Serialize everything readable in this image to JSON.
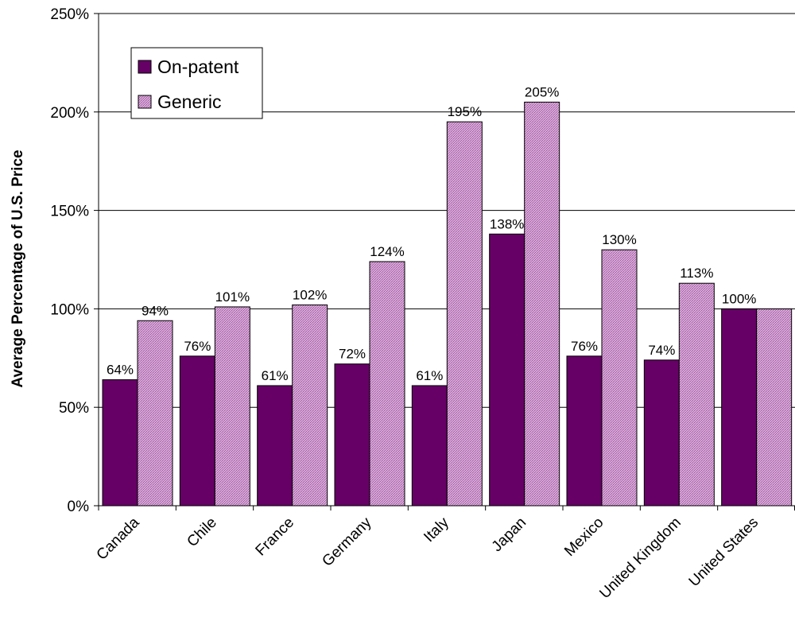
{
  "chart_data": {
    "type": "bar",
    "title": "",
    "xlabel": "",
    "ylabel": "Average Percentage of U.S. Price",
    "ylim": [
      0,
      250
    ],
    "y_tick_values": [
      0,
      50,
      100,
      150,
      200,
      250
    ],
    "y_tick_labels": [
      "0%",
      "50%",
      "100%",
      "150%",
      "200%",
      "250%"
    ],
    "grid": "horizontal",
    "legend_position": "top-left",
    "categories": [
      "Canada",
      "Chile",
      "France",
      "Germany",
      "Italy",
      "Japan",
      "Mexico",
      "United Kingdom",
      "United States"
    ],
    "series": [
      {
        "name": "On-patent",
        "color": "#660066",
        "values": [
          64,
          76,
          61,
          72,
          61,
          138,
          76,
          74,
          100
        ],
        "labels": [
          "64%",
          "76%",
          "61%",
          "72%",
          "61%",
          "138%",
          "76%",
          "74%",
          "100%"
        ]
      },
      {
        "name": "Generic",
        "color": "#c890c8",
        "pattern": "crosshatch",
        "values": [
          94,
          101,
          102,
          124,
          195,
          205,
          130,
          113,
          100
        ],
        "labels": [
          "94%",
          "101%",
          "102%",
          "124%",
          "195%",
          "205%",
          "130%",
          "113%",
          ""
        ]
      }
    ]
  }
}
